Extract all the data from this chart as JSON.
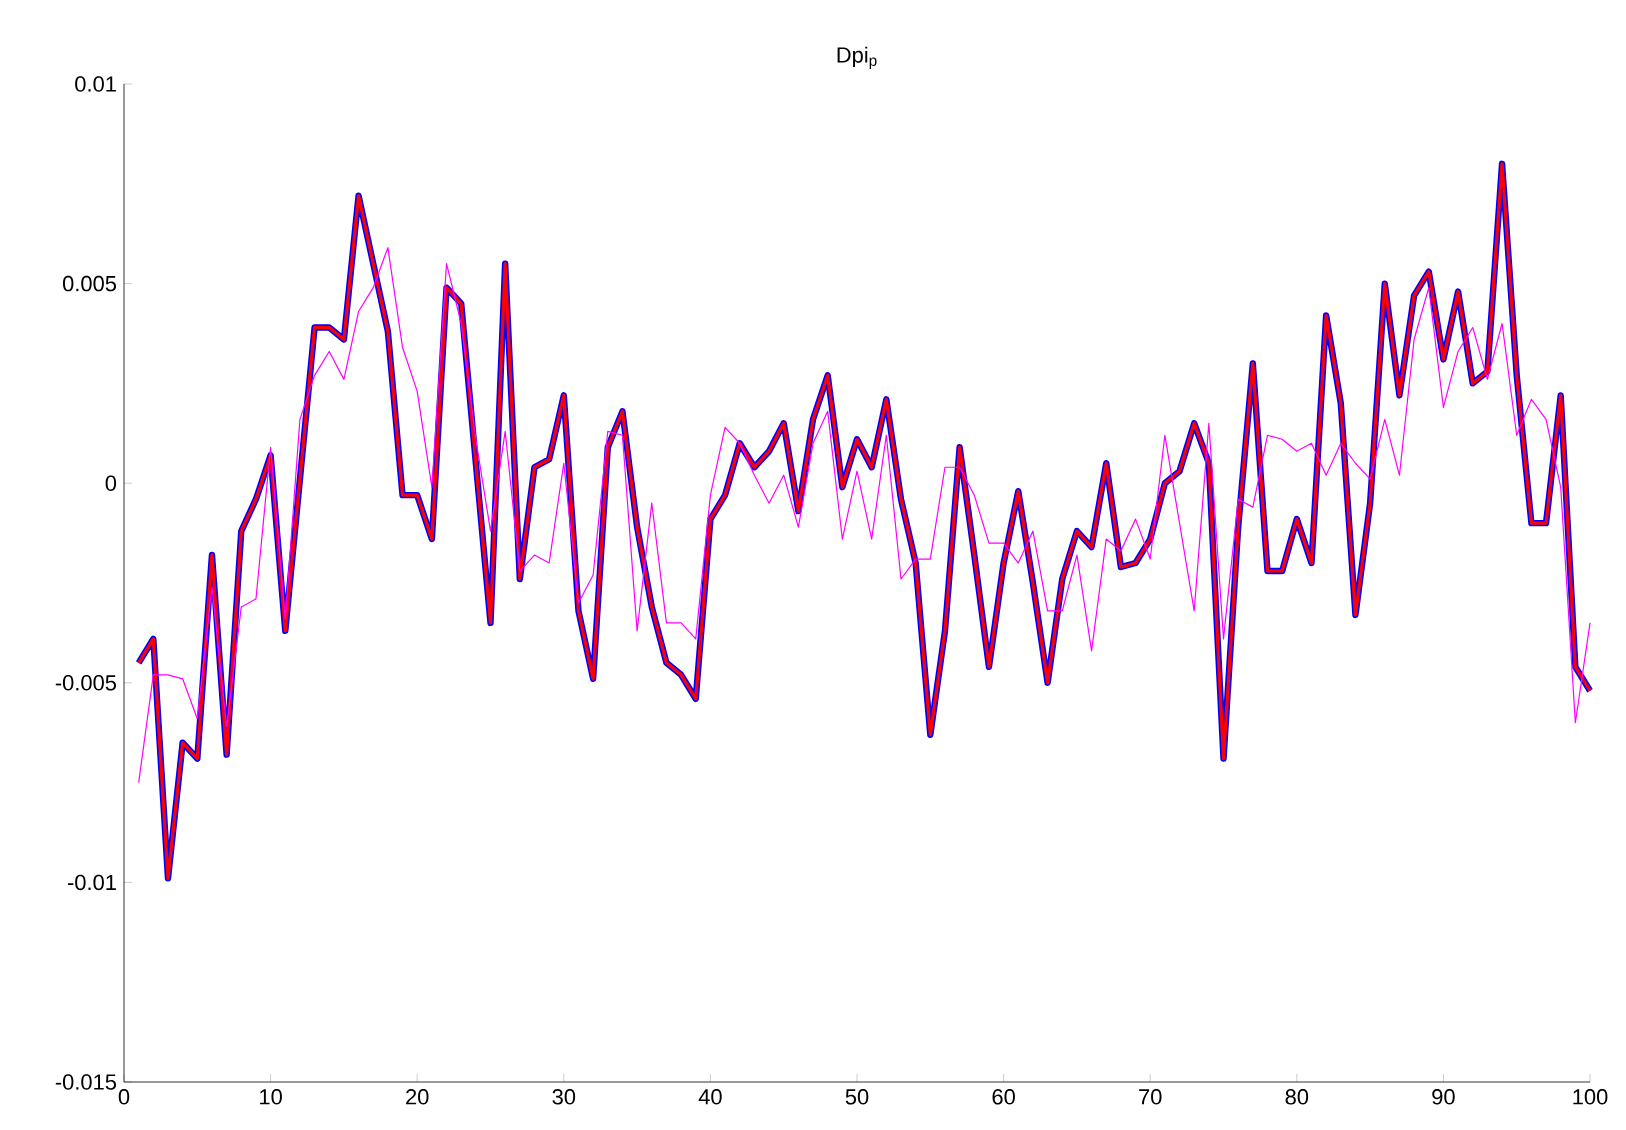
{
  "chart_data": {
    "type": "line",
    "title": "Dpi$_{p}$",
    "x": [
      1,
      2,
      3,
      4,
      5,
      6,
      7,
      8,
      9,
      10,
      11,
      12,
      13,
      14,
      15,
      16,
      17,
      18,
      19,
      20,
      21,
      22,
      23,
      24,
      25,
      26,
      27,
      28,
      29,
      30,
      31,
      32,
      33,
      34,
      35,
      36,
      37,
      38,
      39,
      40,
      41,
      42,
      43,
      44,
      45,
      46,
      47,
      48,
      49,
      50,
      51,
      52,
      53,
      54,
      55,
      56,
      57,
      58,
      59,
      60,
      61,
      62,
      63,
      64,
      65,
      66,
      67,
      68,
      69,
      70,
      71,
      72,
      73,
      74,
      75,
      76,
      77,
      78,
      79,
      80,
      81,
      82,
      83,
      84,
      85,
      86,
      87,
      88,
      89,
      90,
      91,
      92,
      93,
      94,
      95,
      96,
      97,
      98,
      99,
      100
    ],
    "xlim": [
      0,
      100
    ],
    "xticks": [
      0,
      10,
      20,
      30,
      40,
      50,
      60,
      70,
      80,
      90,
      100
    ],
    "ylim": [
      -0.015,
      0.01
    ],
    "yticks": [
      -0.015,
      -0.01,
      -0.005,
      0,
      0.005,
      0.01
    ],
    "grid": false,
    "marker": "none",
    "line_style": "solid",
    "series": [
      {
        "color": "#0000ff",
        "values": [
          -0.0045,
          -0.0039,
          -0.0099,
          -0.0065,
          -0.0069,
          -0.0018,
          -0.0068,
          -0.0012,
          -0.0004,
          0.0007,
          -0.0037,
          0.0001,
          0.0039,
          0.0039,
          0.0036,
          0.0072,
          0.0055,
          0.0038,
          -0.0003,
          -0.0003,
          -0.0014,
          0.0049,
          0.0045,
          0.0005,
          -0.0035,
          0.0055,
          -0.0024,
          0.0004,
          0.0006,
          0.0022,
          -0.0032,
          -0.0049,
          0.0009,
          0.0018,
          -0.0011,
          -0.0031,
          -0.0045,
          -0.0048,
          -0.0054,
          -0.0009,
          -0.0003,
          0.001,
          0.0004,
          0.0008,
          0.0015,
          -0.0007,
          0.0016,
          0.0027,
          -0.0001,
          0.0011,
          0.0004,
          0.0021,
          -0.0004,
          -0.002,
          -0.0063,
          -0.0037,
          0.0009,
          -0.0018,
          -0.0046,
          -0.002,
          -0.0002,
          -0.0025,
          -0.005,
          -0.0024,
          -0.0012,
          -0.0016,
          0.0005,
          -0.0021,
          -0.002,
          -0.0014,
          0.0,
          0.0003,
          0.0015,
          0.0005,
          -0.0069,
          -0.0011,
          0.003,
          -0.0022,
          -0.0022,
          -0.0009,
          -0.002,
          0.0042,
          0.002,
          -0.0033,
          -0.0005,
          0.005,
          0.0022,
          0.0047,
          0.0053,
          0.0031,
          0.0048,
          0.0025,
          0.0028,
          0.008,
          0.0027,
          -0.001,
          -0.001,
          0.0022,
          -0.0046,
          -0.0052
        ]
      },
      {
        "color": "#ff0000",
        "values": [
          -0.0045,
          -0.0039,
          -0.0099,
          -0.0065,
          -0.0069,
          -0.0018,
          -0.0068,
          -0.0012,
          -0.0004,
          0.0007,
          -0.0037,
          0.0001,
          0.0039,
          0.0039,
          0.0036,
          0.0072,
          0.0055,
          0.0038,
          -0.0003,
          -0.0003,
          -0.0014,
          0.0049,
          0.0045,
          0.0005,
          -0.0035,
          0.0055,
          -0.0024,
          0.0004,
          0.0006,
          0.0022,
          -0.0032,
          -0.0049,
          0.0009,
          0.0018,
          -0.0011,
          -0.0031,
          -0.0045,
          -0.0048,
          -0.0054,
          -0.0009,
          -0.0003,
          0.001,
          0.0004,
          0.0008,
          0.0015,
          -0.0007,
          0.0016,
          0.0027,
          -0.0001,
          0.0011,
          0.0004,
          0.0021,
          -0.0004,
          -0.002,
          -0.0063,
          -0.0037,
          0.0009,
          -0.0018,
          -0.0046,
          -0.002,
          -0.0002,
          -0.0025,
          -0.005,
          -0.0024,
          -0.0012,
          -0.0016,
          0.0005,
          -0.0021,
          -0.002,
          -0.0014,
          0.0,
          0.0003,
          0.0015,
          0.0005,
          -0.0069,
          -0.0011,
          0.003,
          -0.0022,
          -0.0022,
          -0.0009,
          -0.002,
          0.0042,
          0.002,
          -0.0033,
          -0.0005,
          0.005,
          0.0022,
          0.0047,
          0.0053,
          0.0031,
          0.0048,
          0.0025,
          0.0028,
          0.008,
          0.0027,
          -0.001,
          -0.001,
          0.0022,
          -0.0046,
          -0.0052
        ]
      },
      {
        "color": "#ff00ff",
        "values": [
          -0.0075,
          -0.0048,
          -0.0048,
          -0.0049,
          -0.0059,
          -0.0026,
          -0.0061,
          -0.0031,
          -0.0029,
          0.0009,
          -0.0034,
          0.0016,
          0.0027,
          0.0033,
          0.0026,
          0.0043,
          0.0049,
          0.0059,
          0.0034,
          0.0023,
          -0.0001,
          0.0055,
          0.004,
          0.0011,
          -0.0012,
          0.0013,
          -0.0022,
          -0.0018,
          -0.002,
          0.0005,
          -0.003,
          -0.0023,
          0.0013,
          0.0012,
          -0.0037,
          -0.0005,
          -0.0035,
          -0.0035,
          -0.0039,
          -0.0003,
          0.0014,
          0.001,
          0.0002,
          -0.0005,
          0.0002,
          -0.0011,
          0.001,
          0.0018,
          -0.0014,
          0.0003,
          -0.0014,
          0.0012,
          -0.0024,
          -0.0019,
          -0.0019,
          0.0004,
          0.0004,
          -0.0003,
          -0.0015,
          -0.0015,
          -0.002,
          -0.0012,
          -0.0032,
          -0.0032,
          -0.0018,
          -0.0042,
          -0.0014,
          -0.0017,
          -0.0009,
          -0.0019,
          0.0012,
          -0.001,
          -0.0032,
          0.0015,
          -0.0039,
          -0.0004,
          -0.0006,
          0.0012,
          0.0011,
          0.0008,
          0.001,
          0.0002,
          0.001,
          0.0005,
          0.0001,
          0.0016,
          0.0002,
          0.0036,
          0.0049,
          0.0019,
          0.0033,
          0.0039,
          0.0026,
          0.004,
          0.0012,
          0.0021,
          0.0016,
          -0.0001,
          -0.006,
          -0.0035
        ]
      }
    ]
  }
}
